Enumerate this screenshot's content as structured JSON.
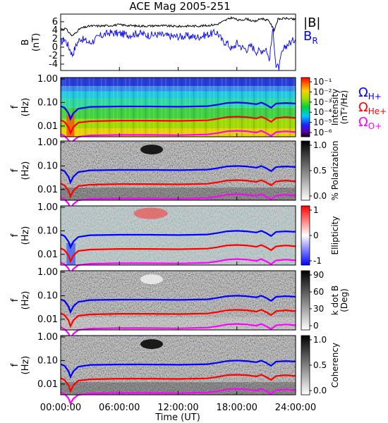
{
  "chart_data": [
    {
      "type": "line",
      "title": "ACE Mag 2005-251",
      "ylabel_line1": "B",
      "ylabel_line2": "(nT)",
      "y_ticks": [
        "6",
        "4",
        "2",
        "0",
        "-2",
        "-4"
      ],
      "ylim": [
        -5.5,
        7.8
      ],
      "xlim_hours": [
        0,
        24
      ],
      "series": [
        {
          "name": "|B|",
          "color": "#000000",
          "points": [
            [
              0,
              4.3
            ],
            [
              0.5,
              4.4
            ],
            [
              0.8,
              3.6
            ],
            [
              1.2,
              2.6
            ],
            [
              1.6,
              3.6
            ],
            [
              2,
              4.4
            ],
            [
              3,
              5.0
            ],
            [
              4,
              5.0
            ],
            [
              5,
              5.1
            ],
            [
              6,
              5.3
            ],
            [
              7,
              5.1
            ],
            [
              8,
              5.0
            ],
            [
              9,
              5.0
            ],
            [
              10,
              5.1
            ],
            [
              11,
              5.0
            ],
            [
              12,
              4.9
            ],
            [
              13,
              5.0
            ],
            [
              14,
              5.0
            ],
            [
              15,
              5.1
            ],
            [
              16,
              5.4
            ],
            [
              16.8,
              6.3
            ],
            [
              17.5,
              7.0
            ],
            [
              18.2,
              6.3
            ],
            [
              19,
              6.7
            ],
            [
              19.8,
              6.0
            ],
            [
              20.5,
              6.8
            ],
            [
              21.3,
              6.2
            ],
            [
              21.8,
              4.0
            ],
            [
              22.2,
              6.6
            ],
            [
              23,
              6.8
            ],
            [
              24,
              6.5
            ]
          ]
        },
        {
          "name": "B_R",
          "legend_main": "B",
          "legend_sub": "R",
          "color": "#0000ff",
          "points": [
            [
              0,
              1.0
            ],
            [
              0.4,
              2.0
            ],
            [
              0.8,
              0.2
            ],
            [
              1.2,
              -1.8
            ],
            [
              1.6,
              0.6
            ],
            [
              2,
              2.1
            ],
            [
              3,
              1.0
            ],
            [
              4,
              2.6
            ],
            [
              5,
              3.4
            ],
            [
              6,
              3.2
            ],
            [
              7,
              2.9
            ],
            [
              8,
              3.3
            ],
            [
              9,
              2.8
            ],
            [
              10,
              3.0
            ],
            [
              11,
              2.6
            ],
            [
              12,
              2.5
            ],
            [
              13,
              2.6
            ],
            [
              14,
              2.4
            ],
            [
              15,
              3.0
            ],
            [
              16,
              3.5
            ],
            [
              16.5,
              1.5
            ],
            [
              17,
              1.0
            ],
            [
              17.5,
              -0.5
            ],
            [
              18,
              1.0
            ],
            [
              18.5,
              0.0
            ],
            [
              19,
              -0.5
            ],
            [
              19.5,
              0.3
            ],
            [
              20,
              -1.0
            ],
            [
              20.5,
              -0.8
            ],
            [
              21,
              -0.3
            ],
            [
              21.3,
              -3.2
            ],
            [
              21.7,
              4.3
            ],
            [
              22,
              -4.6
            ],
            [
              22.3,
              -4.8
            ],
            [
              22.6,
              -1.5
            ],
            [
              23,
              0.3
            ],
            [
              24,
              2.0
            ]
          ]
        }
      ]
    },
    {
      "type": "heatmap",
      "ylabel_line1": "f",
      "ylabel_line2": "(Hz)",
      "y_ticks": [
        "1.00",
        "0.10",
        "0.01"
      ],
      "colorbar": "rainbow",
      "colorbar_title_line1": "Intensity",
      "colorbar_title_line2": "(nT²/Hz)",
      "colorbar_ticks": [
        "10⁻¹",
        "10⁻²",
        "10⁻³",
        "10⁻⁴",
        "10⁻⁵",
        "10⁻⁶"
      ]
    },
    {
      "type": "heatmap",
      "ylabel_line1": "f",
      "ylabel_line2": "(Hz)",
      "y_ticks": [
        "1.00",
        "0.10",
        "0.01"
      ],
      "colorbar": "gray",
      "colorbar_title_line1": "% Polarization",
      "colorbar_ticks": [
        "1.0",
        "0.5",
        "0.0"
      ]
    },
    {
      "type": "heatmap",
      "ylabel_line1": "f",
      "ylabel_line2": "(Hz)",
      "y_ticks": [
        "1.00",
        "0.10",
        "0.01"
      ],
      "colorbar": "bwr",
      "colorbar_title_line1": "Ellipticity",
      "colorbar_ticks": [
        "1",
        "0",
        "-1"
      ]
    },
    {
      "type": "heatmap",
      "ylabel_line1": "f",
      "ylabel_line2": "(Hz)",
      "y_ticks": [
        "1.00",
        "0.10",
        "0.01"
      ],
      "colorbar": "gray",
      "colorbar_title_line1": "k dot B",
      "colorbar_title_line2": "(Deg)",
      "colorbar_ticks": [
        "90",
        "60",
        "30",
        "0"
      ]
    },
    {
      "type": "heatmap",
      "ylabel_line1": "f",
      "ylabel_line2": "(Hz)",
      "y_ticks": [
        "1.00",
        "0.10",
        "0.01"
      ],
      "colorbar": "gray",
      "colorbar_title_line1": "Coherency",
      "colorbar_ticks": [
        "1.0",
        "0.5",
        "0.0"
      ]
    }
  ],
  "gyrofrequency_curves": [
    {
      "name": "Ω_H+",
      "symbol": "Ω",
      "sub": "H+",
      "color": "#0000ff",
      "points_hz": [
        [
          0,
          0.07
        ],
        [
          0.4,
          0.06
        ],
        [
          0.8,
          0.035
        ],
        [
          1.0,
          0.02
        ],
        [
          1.3,
          0.035
        ],
        [
          1.8,
          0.055
        ],
        [
          3,
          0.065
        ],
        [
          6,
          0.068
        ],
        [
          9,
          0.068
        ],
        [
          12,
          0.066
        ],
        [
          15,
          0.07
        ],
        [
          16,
          0.08
        ],
        [
          17,
          0.095
        ],
        [
          18,
          0.1
        ],
        [
          19,
          0.095
        ],
        [
          20,
          0.085
        ],
        [
          20.5,
          0.1
        ],
        [
          21,
          0.08
        ],
        [
          21.5,
          0.06
        ],
        [
          22,
          0.09
        ],
        [
          23,
          0.095
        ],
        [
          24,
          0.09
        ]
      ]
    },
    {
      "name": "Ω_He+",
      "symbol": "Ω",
      "sub": "He+",
      "color": "#ff0000",
      "points_hz": [
        [
          0,
          0.018
        ],
        [
          0.4,
          0.015
        ],
        [
          0.8,
          0.009
        ],
        [
          1.0,
          0.005
        ],
        [
          1.3,
          0.009
        ],
        [
          1.8,
          0.014
        ],
        [
          3,
          0.016
        ],
        [
          6,
          0.017
        ],
        [
          9,
          0.017
        ],
        [
          12,
          0.0165
        ],
        [
          15,
          0.0175
        ],
        [
          16,
          0.02
        ],
        [
          17,
          0.024
        ],
        [
          18,
          0.025
        ],
        [
          19,
          0.024
        ],
        [
          20,
          0.021
        ],
        [
          20.5,
          0.025
        ],
        [
          21,
          0.02
        ],
        [
          21.5,
          0.015
        ],
        [
          22,
          0.022
        ],
        [
          23,
          0.024
        ],
        [
          24,
          0.022
        ]
      ]
    },
    {
      "name": "Ω_O+",
      "symbol": "Ω",
      "sub": "O+",
      "color": "#ff00ff",
      "points_hz": [
        [
          0,
          0.0045
        ],
        [
          0.4,
          0.0038
        ],
        [
          0.8,
          0.0025
        ],
        [
          1.0,
          0.0015
        ],
        [
          1.3,
          0.0024
        ],
        [
          1.8,
          0.0035
        ],
        [
          3,
          0.004
        ],
        [
          6,
          0.0042
        ],
        [
          9,
          0.0042
        ],
        [
          12,
          0.0041
        ],
        [
          15,
          0.0044
        ],
        [
          16,
          0.005
        ],
        [
          17,
          0.006
        ],
        [
          18,
          0.0063
        ],
        [
          19,
          0.006
        ],
        [
          20,
          0.0053
        ],
        [
          20.5,
          0.0063
        ],
        [
          21,
          0.005
        ],
        [
          21.5,
          0.0038
        ],
        [
          22,
          0.0055
        ],
        [
          23,
          0.006
        ],
        [
          24,
          0.0055
        ]
      ]
    }
  ],
  "x_axis": {
    "ticks": [
      "00:00:00",
      "06:00:00",
      "12:00:00",
      "18:00:00",
      "24:00:00"
    ],
    "label": "Time (UT)"
  },
  "colors": {
    "hplus": "#0000ff",
    "heplus": "#ff0000",
    "oplus": "#ff00ff"
  }
}
